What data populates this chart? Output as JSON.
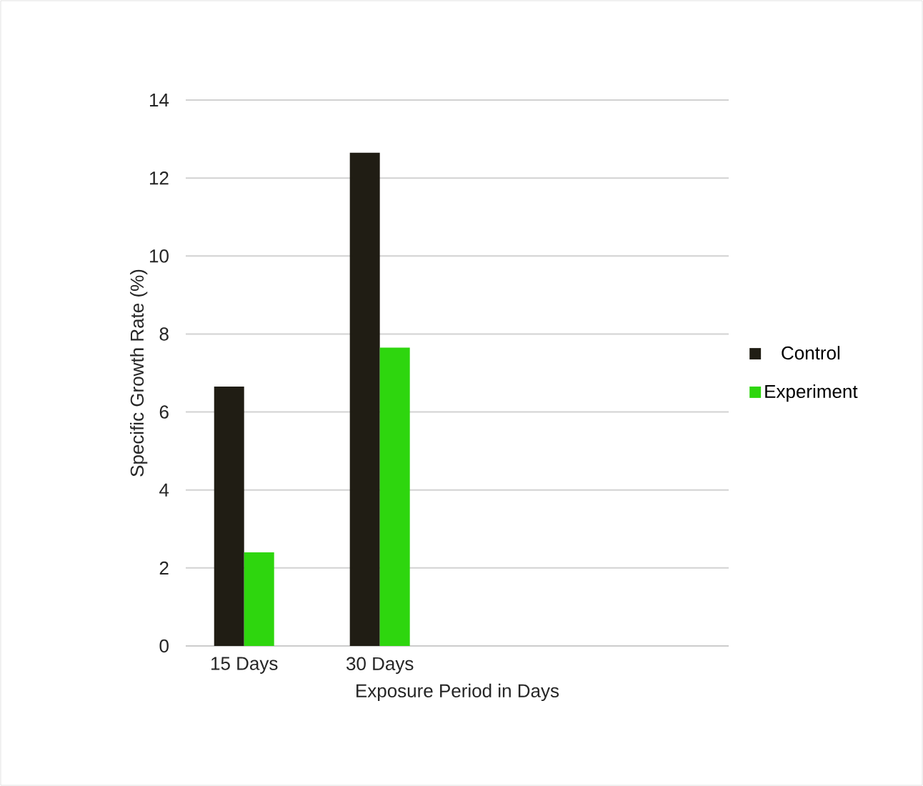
{
  "chart_data": {
    "type": "bar",
    "xlabel": "Exposure Period in Days",
    "ylabel": "Specific Growth Rate (%)",
    "categories": [
      "15 Days",
      "30 Days",
      null,
      null
    ],
    "series": [
      {
        "name": "Control",
        "color": "#201d14",
        "values": [
          6.65,
          12.65,
          null,
          null
        ]
      },
      {
        "name": "Experiment",
        "color": "#2ed60e",
        "values": [
          2.4,
          7.65,
          null,
          null
        ]
      }
    ],
    "ylim": [
      0,
      14
    ],
    "yticks": [
      0,
      2,
      4,
      6,
      8,
      10,
      12,
      14
    ],
    "grid": "y",
    "legend": "right"
  }
}
